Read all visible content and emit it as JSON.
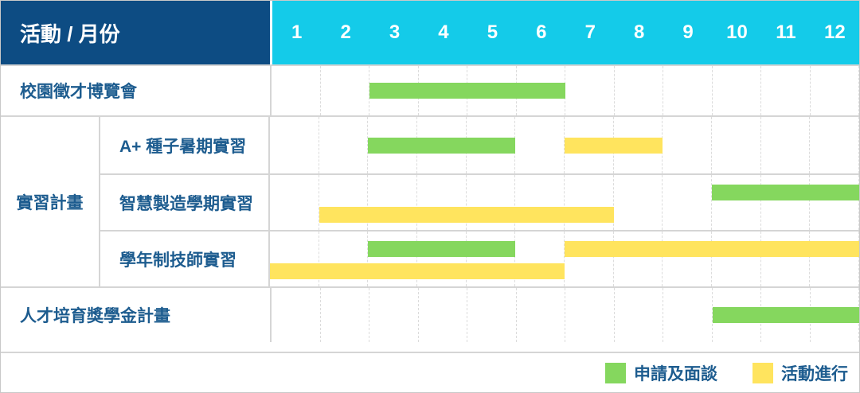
{
  "header": {
    "title": "活動 / 月份"
  },
  "colors": {
    "header_left_bg": "#0d4c83",
    "header_months_bg": "#14cbe9",
    "green": "#85d75e",
    "yellow": "#ffe45e",
    "label_text": "#1d5c8f"
  },
  "chart_data": {
    "type": "gantt",
    "title": "活動 / 月份",
    "months": [
      "1",
      "2",
      "3",
      "4",
      "5",
      "6",
      "7",
      "8",
      "9",
      "10",
      "11",
      "12"
    ],
    "x_range": [
      1,
      12
    ],
    "grid": "dashed-vertical-month-lines",
    "legend_position": "bottom-right",
    "legend": [
      {
        "label": "申請及面談",
        "color": "green"
      },
      {
        "label": "活動進行",
        "color": "yellow"
      }
    ],
    "rows": [
      {
        "group": null,
        "label": "校園徵才博覽會",
        "bars": [
          {
            "color": "green",
            "start_month": 3,
            "end_month": 6,
            "lane": "center"
          }
        ]
      },
      {
        "group": "實習計畫",
        "label": "A+ 種子暑期實習",
        "bars": [
          {
            "color": "green",
            "start_month": 3,
            "end_month": 5,
            "lane": "center"
          },
          {
            "color": "yellow",
            "start_month": 7,
            "end_month": 8,
            "lane": "center"
          }
        ]
      },
      {
        "group": "實習計畫",
        "label": "智慧製造學期實習",
        "bars": [
          {
            "color": "green",
            "start_month": 10,
            "end_month": 12,
            "lane": "up"
          },
          {
            "color": "yellow",
            "start_month": 2,
            "end_month": 7,
            "lane": "down"
          }
        ]
      },
      {
        "group": "實習計畫",
        "label": "學年制技師實習",
        "bars": [
          {
            "color": "green",
            "start_month": 3,
            "end_month": 5,
            "lane": "up"
          },
          {
            "color": "yellow",
            "start_month": 7,
            "end_month": 12,
            "lane": "up"
          },
          {
            "color": "yellow",
            "start_month": 1,
            "end_month": 6,
            "lane": "down"
          }
        ]
      },
      {
        "group": null,
        "label": "人才培育獎學金計畫",
        "bars": [
          {
            "color": "green",
            "start_month": 10,
            "end_month": 12,
            "lane": "center"
          }
        ]
      }
    ]
  }
}
